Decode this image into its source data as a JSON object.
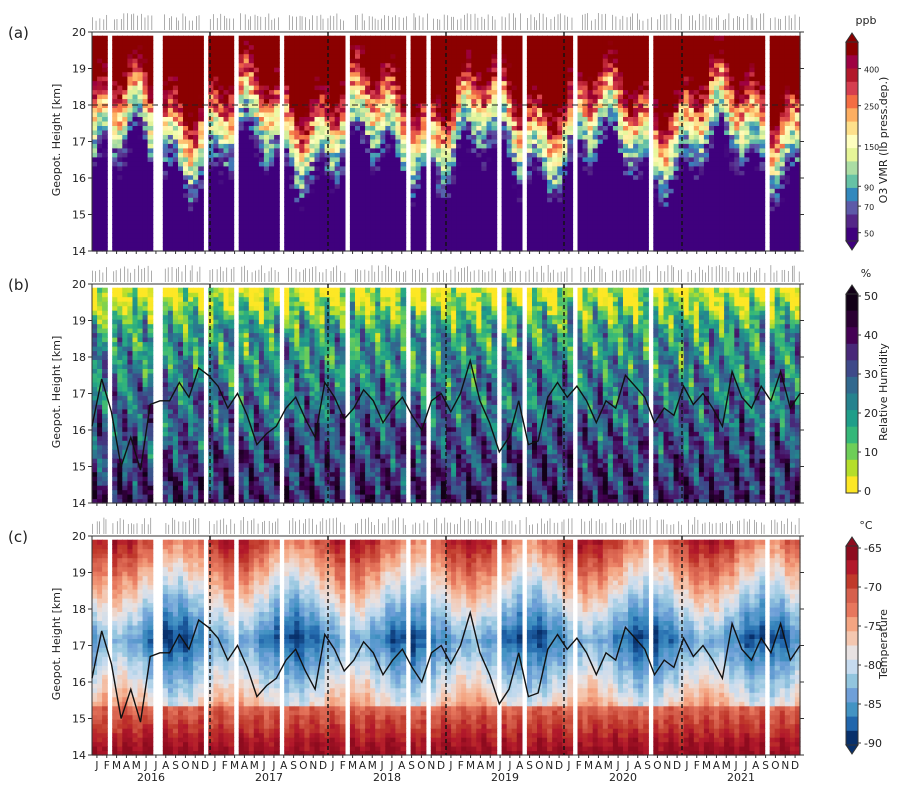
{
  "chart_data": [
    {
      "type": "heatmap",
      "panel_label": "(a)",
      "ylabel": "Geopot. Height [km]",
      "yticks": [
        14,
        15,
        16,
        17,
        18,
        19,
        20
      ],
      "ylim": [
        14,
        20
      ],
      "colorbar": {
        "label": "O3 VMR (lb press.dep.)",
        "unit": "ppb",
        "ticks": [
          "400",
          "250",
          "150",
          "90",
          "70",
          "50"
        ],
        "levels": [
          50,
          70,
          90,
          150,
          250,
          400
        ],
        "extend": "both",
        "colors": [
          "#3f007d",
          "#542788",
          "#5d5aa8",
          "#3288bd",
          "#66c2a5",
          "#abdda4",
          "#e6f598",
          "#ffffbf",
          "#fee08b",
          "#fdae61",
          "#f46d43",
          "#d53e4f",
          "#b2182b",
          "#9e0142",
          "#8b0000"
        ]
      },
      "reference_line_km": 18,
      "height_profile_km": null
    },
    {
      "type": "heatmap",
      "panel_label": "(b)",
      "ylabel": "Geopot. Height [km]",
      "yticks": [
        14,
        15,
        16,
        17,
        18,
        19,
        20
      ],
      "ylim": [
        14,
        20
      ],
      "colorbar": {
        "label": "Relative Humidity",
        "unit": "%",
        "ticks": [
          "50",
          "40",
          "30",
          "20",
          "10",
          "0"
        ],
        "levels": [
          0,
          10,
          20,
          30,
          40,
          50
        ],
        "extend": "max",
        "colors": [
          "#fde725",
          "#b5de2b",
          "#6ece58",
          "#35b779",
          "#1f9e89",
          "#26828e",
          "#31688e",
          "#3e4989",
          "#482878",
          "#440154",
          "#2b0033",
          "#120017"
        ]
      },
      "height_profile_km": [
        16.1,
        17.4,
        16.5,
        15.0,
        15.8,
        14.9,
        16.7,
        16.8,
        16.8,
        17.3,
        16.9,
        17.7,
        17.5,
        17.2,
        16.6,
        17.0,
        16.4,
        15.6,
        15.9,
        16.1,
        16.6,
        16.9,
        16.3,
        15.8,
        17.3,
        16.9,
        16.3,
        16.6,
        17.1,
        16.8,
        16.2,
        16.6,
        16.9,
        16.4,
        16.0,
        16.8,
        17.0,
        16.5,
        17.0,
        17.9,
        16.8,
        16.2,
        15.4,
        15.8,
        16.8,
        15.6,
        15.7,
        16.9,
        17.3,
        16.9,
        17.2,
        16.8,
        16.2,
        16.8,
        16.6,
        17.5,
        17.2,
        16.9,
        16.2,
        16.6,
        16.4,
        17.2,
        16.7,
        17.0,
        16.6,
        16.1,
        17.6,
        16.9,
        16.6,
        17.2,
        16.8,
        17.6,
        16.6,
        17.0
      ]
    },
    {
      "type": "heatmap",
      "panel_label": "(c)",
      "ylabel": "Geopot. Height [km]",
      "yticks": [
        14,
        15,
        16,
        17,
        18,
        19,
        20
      ],
      "ylim": [
        14,
        20
      ],
      "colorbar": {
        "label": "Temperature",
        "unit": "°C",
        "ticks": [
          "-65",
          "-70",
          "-75",
          "-80",
          "-85",
          "-90"
        ],
        "levels": [
          -90,
          -85,
          -80,
          -75,
          -70,
          -65
        ],
        "extend": "both",
        "colors": [
          "#08306b",
          "#2166ac",
          "#4393c3",
          "#6f9fd8",
          "#92c5de",
          "#c6dbef",
          "#e8e2e2",
          "#f4c7b0",
          "#f4a582",
          "#e7775d",
          "#d6604d",
          "#c0392b",
          "#b2182b",
          "#8e0b1e"
        ]
      },
      "height_profile_km": [
        16.1,
        17.4,
        16.5,
        15.0,
        15.8,
        14.9,
        16.7,
        16.8,
        16.8,
        17.3,
        16.9,
        17.7,
        17.5,
        17.2,
        16.6,
        17.0,
        16.4,
        15.6,
        15.9,
        16.1,
        16.6,
        16.9,
        16.3,
        15.8,
        17.3,
        16.9,
        16.3,
        16.6,
        17.1,
        16.8,
        16.2,
        16.6,
        16.9,
        16.4,
        16.0,
        16.8,
        17.0,
        16.5,
        17.0,
        17.9,
        16.8,
        16.2,
        15.4,
        15.8,
        16.8,
        15.6,
        15.7,
        16.9,
        17.3,
        16.9,
        17.2,
        16.8,
        16.2,
        16.8,
        16.6,
        17.5,
        17.2,
        16.9,
        16.2,
        16.6,
        16.4,
        17.2,
        16.7,
        17.0,
        16.6,
        16.1,
        17.6,
        16.9,
        16.6,
        17.2,
        16.8,
        17.6,
        16.6,
        17.0
      ]
    }
  ],
  "x_axis": {
    "months": [
      "J",
      "F",
      "M",
      "A",
      "M",
      "J",
      "J",
      "A",
      "S",
      "O",
      "N",
      "D",
      "J",
      "F",
      "M",
      "A",
      "M",
      "J",
      "J",
      "A",
      "S",
      "O",
      "N",
      "D",
      "J",
      "F",
      "M",
      "A",
      "M",
      "J",
      "J",
      "A",
      "S",
      "O",
      "N",
      "D",
      "J",
      "F",
      "M",
      "A",
      "M",
      "J",
      "J",
      "A",
      "S",
      "O",
      "N",
      "D",
      "J",
      "F",
      "M",
      "A",
      "M",
      "J",
      "J",
      "A",
      "S",
      "O",
      "N",
      "D",
      "J",
      "F",
      "M",
      "A",
      "M",
      "J",
      "J",
      "A",
      "S",
      "O",
      "N",
      "D"
    ],
    "years": [
      "2016",
      "2017",
      "2018",
      "2019",
      "2020",
      "2021"
    ],
    "range_months": [
      0,
      72
    ],
    "year_boundaries_month": [
      12,
      24,
      36,
      48,
      60
    ],
    "data_gaps_month": [
      [
        1.5,
        2.0
      ],
      [
        6.2,
        7.0
      ],
      [
        11.1,
        11.6
      ],
      [
        14.5,
        15.0
      ],
      [
        19.2,
        19.7
      ],
      [
        25.9,
        26.4
      ],
      [
        32.0,
        32.3
      ],
      [
        34.0,
        34.4
      ],
      [
        41.2,
        41.6
      ],
      [
        43.6,
        44.0
      ],
      [
        49.0,
        49.5
      ],
      [
        52.2,
        52.6
      ],
      [
        56.8,
        57.3
      ],
      [
        60.0,
        60.4
      ],
      [
        68.4,
        68.8
      ]
    ]
  }
}
